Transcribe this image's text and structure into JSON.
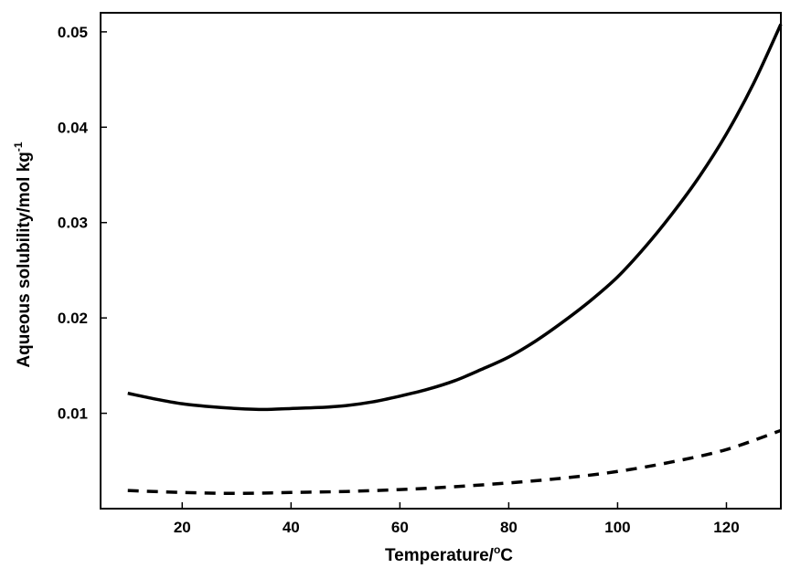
{
  "chart_data": {
    "type": "line",
    "title": "",
    "xlabel": "Temperature/",
    "xlabel_sup": "o",
    "xlabel_tail": "C",
    "ylabel": "Aqueous solubility/mol kg",
    "ylabel_sup": "-1",
    "xlim": [
      5,
      130
    ],
    "ylim": [
      0,
      0.052
    ],
    "grid": false,
    "legend": "none",
    "x_ticks": [
      20,
      40,
      60,
      80,
      100,
      120
    ],
    "x_tick_labels": [
      "20",
      "40",
      "60",
      "80",
      "100",
      "120"
    ],
    "y_ticks": [
      0.01,
      0.02,
      0.03,
      0.04,
      0.05
    ],
    "y_tick_labels": [
      "0.01",
      "0.02",
      "0.03",
      "0.04",
      "0.05"
    ],
    "series": [
      {
        "style": "solid",
        "color": "#000000",
        "x": [
          10,
          15,
          20,
          25,
          30,
          35,
          40,
          45,
          50,
          55,
          60,
          65,
          70,
          75,
          80,
          85,
          90,
          95,
          100,
          105,
          110,
          115,
          120,
          125,
          130
        ],
        "y": [
          0.0121,
          0.0115,
          0.011,
          0.0107,
          0.0105,
          0.0104,
          0.0105,
          0.0106,
          0.0108,
          0.0112,
          0.0118,
          0.0125,
          0.0134,
          0.0146,
          0.0159,
          0.0176,
          0.0196,
          0.0218,
          0.0243,
          0.0274,
          0.0309,
          0.0348,
          0.0393,
          0.0446,
          0.0508
        ]
      },
      {
        "style": "dashed",
        "color": "#000000",
        "x": [
          10,
          20,
          30,
          40,
          50,
          60,
          70,
          80,
          90,
          100,
          110,
          120,
          130
        ],
        "y": [
          0.0019,
          0.0017,
          0.0016,
          0.0017,
          0.0018,
          0.002,
          0.0023,
          0.0027,
          0.0032,
          0.0039,
          0.0049,
          0.0062,
          0.0082
        ]
      }
    ]
  }
}
